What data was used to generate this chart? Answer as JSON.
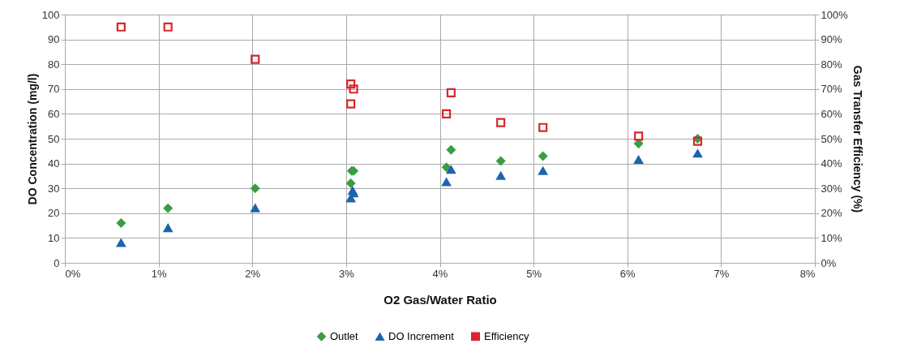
{
  "chart_data": {
    "type": "scatter",
    "xlabel": "O2 Gas/Water Ratio",
    "ylabel": "DO Concentration (mg/l)",
    "y2label": "Gas Transfer Efficiency (%)",
    "xlim": [
      0,
      8
    ],
    "xticks": [
      {
        "value": 0,
        "label": "0%"
      },
      {
        "value": 1,
        "label": "1%"
      },
      {
        "value": 2,
        "label": "2%"
      },
      {
        "value": 3,
        "label": "3%"
      },
      {
        "value": 4,
        "label": "4%"
      },
      {
        "value": 5,
        "label": "5%"
      },
      {
        "value": 6,
        "label": "6%"
      },
      {
        "value": 7,
        "label": "7%"
      },
      {
        "value": 8,
        "label": "8%"
      }
    ],
    "ylim": [
      0,
      100
    ],
    "yticks": [
      0,
      10,
      20,
      30,
      40,
      50,
      60,
      70,
      80,
      90,
      100
    ],
    "y2lim": [
      0,
      100
    ],
    "y2ticks": [
      {
        "value": 0,
        "label": "0%"
      },
      {
        "value": 10,
        "label": "10%"
      },
      {
        "value": 20,
        "label": "20%"
      },
      {
        "value": 30,
        "label": "30%"
      },
      {
        "value": 40,
        "label": "40%"
      },
      {
        "value": 50,
        "label": "50%"
      },
      {
        "value": 60,
        "label": "60%"
      },
      {
        "value": 70,
        "label": "70%"
      },
      {
        "value": 80,
        "label": "80%"
      },
      {
        "value": 90,
        "label": "90%"
      },
      {
        "value": 100,
        "label": "100%"
      }
    ],
    "grid": true,
    "legend": "bottom",
    "series": [
      {
        "name": "Outlet",
        "color": "#3a9e44",
        "marker": "diamond",
        "x": [
          0.6,
          1.1,
          2.03,
          3.06,
          3.08,
          3.05,
          4.07,
          4.12,
          4.65,
          5.1,
          6.12,
          6.75
        ],
        "values": [
          16,
          22,
          30,
          37,
          37,
          32,
          38.5,
          45.5,
          41,
          43,
          48,
          50
        ]
      },
      {
        "name": "DO Increment",
        "color": "#1f63ad",
        "marker": "triangle",
        "x": [
          0.6,
          1.1,
          2.03,
          3.05,
          3.07,
          3.08,
          4.07,
          4.12,
          4.65,
          5.1,
          6.12,
          6.75
        ],
        "values": [
          8,
          14,
          22,
          26,
          29,
          28,
          32.5,
          37.5,
          35,
          37,
          41.5,
          44
        ]
      },
      {
        "name": "Efficiency",
        "color": "#d7262e",
        "marker": "square",
        "axis": "y2",
        "x": [
          0.6,
          1.1,
          2.03,
          3.05,
          3.08,
          3.05,
          4.07,
          4.12,
          4.65,
          5.1,
          6.12,
          6.75
        ],
        "values": [
          95,
          95,
          82,
          72,
          70,
          64,
          60,
          68.5,
          56.5,
          54.5,
          51,
          49
        ]
      }
    ]
  }
}
